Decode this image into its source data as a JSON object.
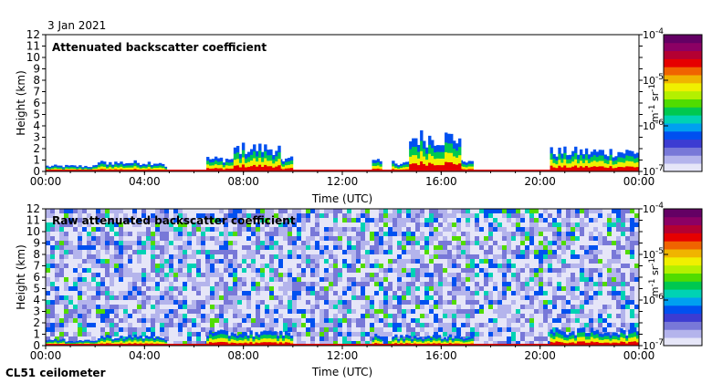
{
  "date_label": "3 Jan 2021",
  "footer_label": "CL51 ceilometer",
  "colors": {
    "background": "#ffffff",
    "axis": "#000000",
    "colormap": [
      "#e6e6f8",
      "#b4b4ec",
      "#7878d8",
      "#3c3cd2",
      "#0050f0",
      "#00a0f0",
      "#00d2b4",
      "#00c850",
      "#50dc00",
      "#b4f000",
      "#f0f000",
      "#f0b400",
      "#f06400",
      "#e60000",
      "#b40032",
      "#8c0064",
      "#640064"
    ]
  },
  "chart_data": [
    {
      "type": "heatmap",
      "title": "Attenuated backscatter coefficient",
      "xlabel": "Time (UTC)",
      "ylabel": "Height (km)",
      "x_ticks": [
        "00:00",
        "04:00",
        "08:00",
        "12:00",
        "16:00",
        "20:00",
        "00:00"
      ],
      "xlim_hours": [
        0,
        24
      ],
      "y_ticks": [
        0,
        1,
        2,
        3,
        4,
        5,
        6,
        7,
        8,
        9,
        10,
        11,
        12
      ],
      "ylim_km": [
        0,
        12
      ],
      "colorbar": {
        "unit_base": "m",
        "unit_sup1": "-1",
        "unit_mid": " sr",
        "unit_sup2": "-1",
        "tick_base": "10",
        "tick_exponents": [
          "-4",
          "-5",
          "-6",
          "-7"
        ],
        "scale": "log",
        "range": [
          1e-07,
          0.0001
        ]
      },
      "noise_background": false,
      "layers": [
        {
          "start_h": 0.0,
          "end_h": 4.9,
          "top_km": 0.6
        },
        {
          "start_h": 2.1,
          "end_h": 4.8,
          "top_km": 1.0
        },
        {
          "start_h": 6.5,
          "end_h": 10.0,
          "top_km": 1.4
        },
        {
          "start_h": 7.6,
          "end_h": 9.5,
          "top_km": 2.6
        },
        {
          "start_h": 13.2,
          "end_h": 13.6,
          "top_km": 1.1
        },
        {
          "start_h": 14.0,
          "end_h": 17.3,
          "top_km": 1.0
        },
        {
          "start_h": 14.7,
          "end_h": 16.8,
          "top_km": 3.8
        },
        {
          "start_h": 20.4,
          "end_h": 24.0,
          "top_km": 2.2
        }
      ]
    },
    {
      "type": "heatmap",
      "title": "Raw attenuated backscatter coefficient",
      "xlabel": "Time (UTC)",
      "ylabel": "Height (km)",
      "x_ticks": [
        "00:00",
        "04:00",
        "08:00",
        "12:00",
        "16:00",
        "20:00",
        "00:00"
      ],
      "xlim_hours": [
        0,
        24
      ],
      "y_ticks": [
        0,
        1,
        2,
        3,
        4,
        5,
        6,
        7,
        8,
        9,
        10,
        11,
        12
      ],
      "ylim_km": [
        0,
        12
      ],
      "colorbar": {
        "unit_base": "m",
        "unit_sup1": "-1",
        "unit_mid": " sr",
        "unit_sup2": "-1",
        "tick_base": "10",
        "tick_exponents": [
          "-4",
          "-5",
          "-6",
          "-7"
        ],
        "scale": "log",
        "range": [
          1e-07,
          0.0001
        ]
      },
      "noise_background": true,
      "layers": [
        {
          "start_h": 0.0,
          "end_h": 4.9,
          "top_km": 0.6
        },
        {
          "start_h": 2.1,
          "end_h": 4.8,
          "top_km": 1.0
        },
        {
          "start_h": 6.5,
          "end_h": 10.0,
          "top_km": 1.4
        },
        {
          "start_h": 13.2,
          "end_h": 13.6,
          "top_km": 1.1
        },
        {
          "start_h": 14.0,
          "end_h": 17.3,
          "top_km": 1.0
        },
        {
          "start_h": 20.4,
          "end_h": 24.0,
          "top_km": 1.6
        }
      ]
    }
  ]
}
